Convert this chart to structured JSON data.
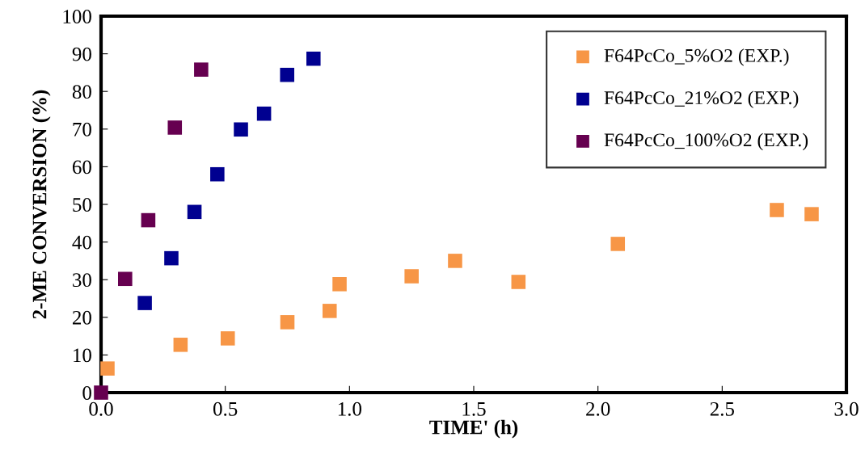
{
  "chart_data": {
    "type": "scatter",
    "xlabel": "TIME' (h)",
    "ylabel": "2-ME CONVERSION (%)",
    "xlim": [
      0,
      3
    ],
    "xticks": [
      {
        "value": 0,
        "label": "0.0"
      },
      {
        "value": 0.5,
        "label": "0.5"
      },
      {
        "value": 1,
        "label": "1.0"
      },
      {
        "value": 1.5,
        "label": "1.5"
      },
      {
        "value": 2,
        "label": "2.0"
      },
      {
        "value": 2.5,
        "label": "2.5"
      },
      {
        "value": 3,
        "label": "3.0"
      }
    ],
    "ylim": [
      0,
      100
    ],
    "yticks": [
      0,
      10,
      20,
      30,
      40,
      50,
      60,
      70,
      80,
      90,
      100
    ],
    "grid": false,
    "legend": "top right",
    "marker": "square",
    "series": [
      {
        "name": "F64PcCo_5%O2 (EXP.)",
        "color": "#f79646",
        "x": [
          0.026,
          0.32,
          0.51,
          0.75,
          0.92,
          0.96,
          1.25,
          1.425,
          1.68,
          2.08,
          2.72,
          2.86
        ],
        "values": [
          6.4,
          12.7,
          14.4,
          18.7,
          21.7,
          28.8,
          30.9,
          35.0,
          29.4,
          39.5,
          48.5,
          47.4
        ]
      },
      {
        "name": "F64PcCo_21%O2 (EXP.)",
        "color": "#000090",
        "x": [
          0.176,
          0.283,
          0.376,
          0.468,
          0.563,
          0.656,
          0.749,
          0.855
        ],
        "values": [
          23.8,
          35.7,
          48.0,
          58.0,
          69.9,
          74.1,
          84.4,
          88.7
        ]
      },
      {
        "name": "F64PcCo_100%O2 (EXP.)",
        "color": "#660050",
        "x": [
          0,
          0.097,
          0.19,
          0.297,
          0.403
        ],
        "values": [
          0,
          30.2,
          45.8,
          70.4,
          85.8
        ]
      }
    ]
  }
}
